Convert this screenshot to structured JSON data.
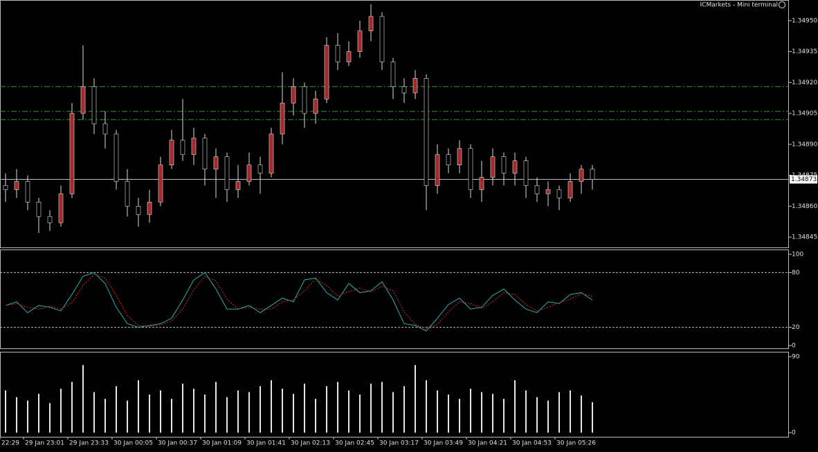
{
  "chart_data": [
    {
      "type": "candlestick",
      "title": "ICMarkets - Mini terminal",
      "up_color": "#a0282a",
      "down_color": "#000000",
      "wick_color": "#e0e0e0",
      "ylim": [
        1.3484,
        1.3496
      ],
      "yticks": [
        {
          "value": 1.3495,
          "label": "1.34950"
        },
        {
          "value": 1.34935,
          "label": "1.34935"
        },
        {
          "value": 1.3492,
          "label": "1.34920"
        },
        {
          "value": 1.34905,
          "label": "1.34905"
        },
        {
          "value": 1.3489,
          "label": "1.34890"
        },
        {
          "value": 1.34875,
          "label": "1.34875"
        },
        {
          "value": 1.3486,
          "label": "1.34860"
        },
        {
          "value": 1.34845,
          "label": "1.34845"
        }
      ],
      "levels": [
        1.34918,
        1.34906,
        1.34902
      ],
      "level_color": "#2e9e3e",
      "current_price": {
        "value": 1.34873,
        "label": "1.34873"
      },
      "ohlc": [
        [
          1.3487,
          1.34876,
          1.34862,
          1.34868
        ],
        [
          1.34868,
          1.34878,
          1.34864,
          1.34872
        ],
        [
          1.34872,
          1.34875,
          1.34858,
          1.34862
        ],
        [
          1.34862,
          1.34864,
          1.34847,
          1.34855
        ],
        [
          1.34855,
          1.34858,
          1.34848,
          1.34852
        ],
        [
          1.34852,
          1.3487,
          1.3485,
          1.34866
        ],
        [
          1.34866,
          1.3491,
          1.34864,
          1.34905
        ],
        [
          1.34905,
          1.34938,
          1.34902,
          1.34918
        ],
        [
          1.34918,
          1.34922,
          1.34895,
          1.349
        ],
        [
          1.349,
          1.34906,
          1.34888,
          1.34895
        ],
        [
          1.34895,
          1.34897,
          1.34868,
          1.34872
        ],
        [
          1.34872,
          1.34878,
          1.34855,
          1.3486
        ],
        [
          1.3486,
          1.34864,
          1.3485,
          1.34856
        ],
        [
          1.34856,
          1.34868,
          1.34852,
          1.34862
        ],
        [
          1.34862,
          1.34884,
          1.3486,
          1.3488
        ],
        [
          1.3488,
          1.34897,
          1.34878,
          1.34892
        ],
        [
          1.34892,
          1.34912,
          1.34882,
          1.34885
        ],
        [
          1.34885,
          1.34898,
          1.3488,
          1.34893
        ],
        [
          1.34893,
          1.34895,
          1.3487,
          1.34878
        ],
        [
          1.34878,
          1.34888,
          1.34864,
          1.34884
        ],
        [
          1.34884,
          1.34886,
          1.34862,
          1.34868
        ],
        [
          1.34868,
          1.3488,
          1.34864,
          1.34872
        ],
        [
          1.34872,
          1.34886,
          1.3487,
          1.3488
        ],
        [
          1.3488,
          1.34884,
          1.34866,
          1.34876
        ],
        [
          1.34876,
          1.34898,
          1.34874,
          1.34895
        ],
        [
          1.34895,
          1.34925,
          1.3489,
          1.3491
        ],
        [
          1.3491,
          1.34922,
          1.34904,
          1.34918
        ],
        [
          1.34918,
          1.3492,
          1.34898,
          1.34905
        ],
        [
          1.34905,
          1.34916,
          1.349,
          1.34912
        ],
        [
          1.34912,
          1.34942,
          1.3491,
          1.34938
        ],
        [
          1.34938,
          1.34944,
          1.34926,
          1.3493
        ],
        [
          1.3493,
          1.3494,
          1.34928,
          1.34935
        ],
        [
          1.34935,
          1.3495,
          1.34932,
          1.34945
        ],
        [
          1.34945,
          1.34958,
          1.3494,
          1.34952
        ],
        [
          1.34952,
          1.34954,
          1.34926,
          1.3493
        ],
        [
          1.3493,
          1.34932,
          1.34912,
          1.34918
        ],
        [
          1.34918,
          1.34922,
          1.3491,
          1.34915
        ],
        [
          1.34915,
          1.34926,
          1.34912,
          1.34922
        ],
        [
          1.34922,
          1.34924,
          1.34858,
          1.3487
        ],
        [
          1.3487,
          1.3489,
          1.34866,
          1.34885
        ],
        [
          1.34885,
          1.34888,
          1.34876,
          1.3488
        ],
        [
          1.3488,
          1.34892,
          1.34876,
          1.34888
        ],
        [
          1.34888,
          1.3489,
          1.34864,
          1.34868
        ],
        [
          1.34868,
          1.34882,
          1.34862,
          1.34874
        ],
        [
          1.34874,
          1.34888,
          1.3487,
          1.34884
        ],
        [
          1.34884,
          1.34886,
          1.3487,
          1.34876
        ],
        [
          1.34876,
          1.34886,
          1.3487,
          1.34882
        ],
        [
          1.34882,
          1.34884,
          1.34864,
          1.3487
        ],
        [
          1.3487,
          1.34874,
          1.34862,
          1.34866
        ],
        [
          1.34866,
          1.34872,
          1.3486,
          1.34868
        ],
        [
          1.34868,
          1.3487,
          1.34858,
          1.34864
        ],
        [
          1.34864,
          1.34876,
          1.34862,
          1.34872
        ],
        [
          1.34872,
          1.3488,
          1.34866,
          1.34878
        ],
        [
          1.34878,
          1.3488,
          1.34868,
          1.34873
        ]
      ]
    },
    {
      "type": "line",
      "ylim": [
        0,
        100
      ],
      "yticks": [
        0,
        20,
        80,
        100
      ],
      "levels": [
        20,
        80
      ],
      "series": [
        {
          "color": "#2ab0b0",
          "values": [
            44,
            48,
            36,
            44,
            42,
            38,
            56,
            76,
            80,
            68,
            42,
            24,
            20,
            22,
            24,
            30,
            50,
            72,
            80,
            62,
            40,
            40,
            44,
            36,
            44,
            52,
            48,
            72,
            74,
            58,
            50,
            68,
            58,
            60,
            70,
            50,
            24,
            22,
            16,
            30,
            45,
            52,
            40,
            42,
            55,
            62,
            50,
            40,
            36,
            48,
            46,
            56,
            58,
            50
          ]
        },
        {
          "color": "#e03030",
          "dashed": true,
          "values": [
            44,
            46,
            42,
            40,
            43,
            40,
            47,
            66,
            78,
            74,
            55,
            33,
            22,
            21,
            23,
            27,
            40,
            61,
            76,
            71,
            51,
            40,
            42,
            40,
            40,
            48,
            50,
            60,
            73,
            66,
            54,
            59,
            63,
            59,
            65,
            60,
            37,
            23,
            19,
            23,
            37,
            48,
            46,
            41,
            48,
            58,
            56,
            45,
            38,
            42,
            47,
            51,
            57,
            54
          ]
        }
      ]
    },
    {
      "type": "bar",
      "color": "#e8e8e8",
      "ylim": [
        0,
        90
      ],
      "yticks": [
        0,
        90
      ],
      "values": [
        50,
        42,
        38,
        46,
        35,
        52,
        60,
        80,
        48,
        40,
        55,
        38,
        62,
        45,
        50,
        40,
        58,
        52,
        45,
        60,
        42,
        50,
        48,
        55,
        62,
        52,
        46,
        58,
        40,
        55,
        60,
        50,
        45,
        58,
        60,
        48,
        55,
        80,
        62,
        50,
        45,
        40,
        52,
        48,
        46,
        40,
        62,
        50,
        42,
        38,
        48,
        50,
        44,
        36
      ],
      "x_tick_labels": [
        "22:29",
        "29 Jan 23:01",
        "29 Jan 23:33",
        "30 Jan 00:05",
        "30 Jan 00:37",
        "30 Jan 01:09",
        "30 Jan 01:41",
        "30 Jan 02:13",
        "30 Jan 02:45",
        "30 Jan 03:17",
        "30 Jan 03:49",
        "30 Jan 04:21",
        "30 Jan 04:53",
        "30 Jan 05:26"
      ]
    }
  ]
}
